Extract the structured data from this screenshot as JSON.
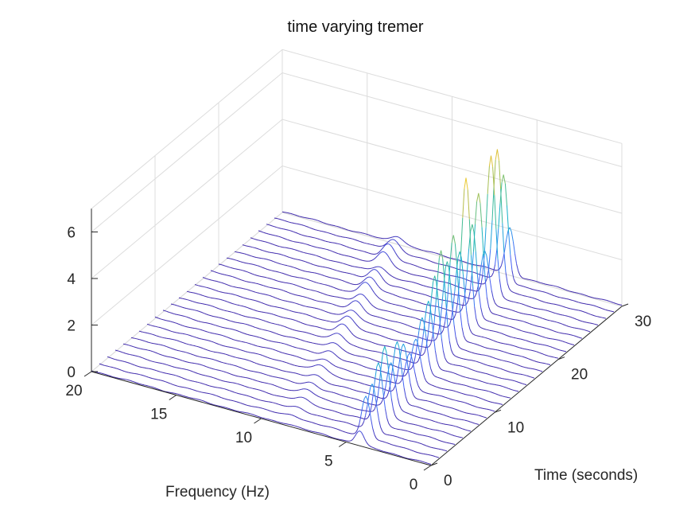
{
  "chart_data": {
    "type": "line",
    "title": "time varying tremer",
    "xlabel": "Time (seconds)",
    "ylabel": "Frequency (Hz)",
    "zlabel": "",
    "plot_style": "3-D waterfall, one spectrum trace per time step, colored by amplitude (parula colormap)",
    "xlim": [
      0,
      30
    ],
    "ylim": [
      0,
      20
    ],
    "zlim": [
      0,
      7
    ],
    "x_ticks": [
      0,
      10,
      20,
      30
    ],
    "y_ticks": [
      0,
      5,
      10,
      15,
      20
    ],
    "z_ticks": [
      0,
      2,
      4,
      6
    ],
    "x_tick_labels": [
      "0",
      "10",
      "20",
      "30"
    ],
    "y_tick_labels": [
      "0",
      "5",
      "10",
      "15",
      "20"
    ],
    "z_tick_labels": [
      "0",
      "2",
      "4",
      "6"
    ],
    "grid": true,
    "colormap": [
      "#3e26a8",
      "#4760f5",
      "#2a94ec",
      "#13b1c9",
      "#3dbb99",
      "#8ec262",
      "#d3ba3a",
      "#fcd631"
    ],
    "trace_times": [
      0,
      1.25,
      2.5,
      3.75,
      5,
      6.25,
      7.5,
      8.75,
      10,
      11.25,
      12.5,
      13.75,
      15,
      16.25,
      17.5,
      18.75,
      20,
      21.25,
      22.5,
      23.75,
      25,
      26.25,
      27.5,
      28.75,
      30
    ],
    "peak_frequency_hz": [
      4.2,
      4.3,
      4.4,
      4.5,
      4.6,
      4.7,
      4.8,
      4.9,
      5.0,
      5.1,
      5.2,
      5.3,
      5.4,
      5.5,
      5.6,
      5.7,
      5.8,
      5.9,
      6.0,
      6.1,
      6.2,
      6.3,
      6.4,
      6.5,
      6.6
    ],
    "peak_amplitude": [
      0.6,
      1.8,
      2.0,
      2.6,
      3.0,
      2.0,
      2.6,
      2.2,
      1.5,
      1.8,
      2.4,
      2.8,
      3.6,
      4.4,
      3.6,
      4.4,
      3.4,
      6.3,
      4.0,
      5.0,
      2.2,
      6.0,
      6.0,
      4.6,
      2.0
    ],
    "harmonic_frequency_hz": [
      8.4,
      8.6,
      8.8,
      9.0,
      9.2,
      9.4,
      9.6,
      9.8,
      10.0,
      10.2,
      10.4,
      10.6,
      10.8,
      11.0,
      11.2,
      11.4,
      11.6,
      11.8,
      12.0,
      12.2,
      12.4,
      12.6,
      12.8,
      13.0,
      13.2
    ],
    "harmonic_amplitude": [
      0.05,
      0.1,
      0.1,
      0.2,
      0.25,
      0.2,
      0.2,
      0.3,
      0.2,
      0.25,
      0.3,
      0.35,
      0.4,
      0.45,
      0.4,
      0.45,
      0.4,
      0.6,
      0.5,
      0.5,
      0.3,
      0.6,
      0.6,
      0.5,
      0.3
    ],
    "baseline_amplitude": 0.05
  }
}
